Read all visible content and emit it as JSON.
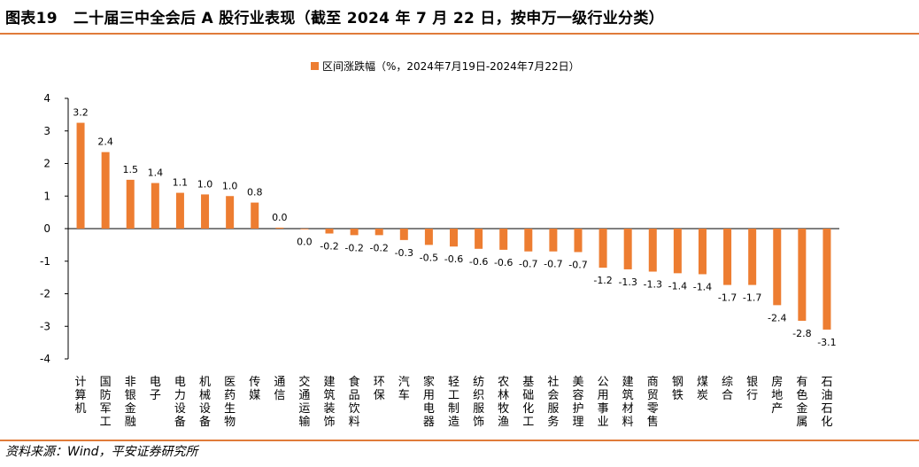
{
  "header": {
    "figure_number": "图表19",
    "title": "二十届三中全会后 A 股行业表现（截至 2024 年 7 月 22 日，按申万一级行业分类）"
  },
  "footer": {
    "source": "资料来源：Wind，平安证券研究所"
  },
  "chart_data": {
    "type": "bar",
    "legend_position": "top-center",
    "grid": false,
    "series": [
      {
        "name": "区间涨跌幅（%，2024年7月19日-2024年7月22日）",
        "color": "#ED7D31",
        "values": [
          3.25,
          2.35,
          1.5,
          1.4,
          1.1,
          1.05,
          1.0,
          0.8,
          0.03,
          -0.02,
          -0.15,
          -0.2,
          -0.2,
          -0.35,
          -0.5,
          -0.55,
          -0.62,
          -0.65,
          -0.7,
          -0.7,
          -0.72,
          -1.2,
          -1.25,
          -1.32,
          -1.37,
          -1.4,
          -1.73,
          -1.73,
          -2.35,
          -2.83,
          -3.1
        ],
        "labels": [
          "3.2",
          "2.4",
          "1.5",
          "1.4",
          "1.1",
          "1.0",
          "1.0",
          "0.8",
          "0.0",
          "0.0",
          "-0.2",
          "-0.2",
          "-0.2",
          "-0.3",
          "-0.5",
          "-0.6",
          "-0.6",
          "-0.6",
          "-0.7",
          "-0.7",
          "-0.7",
          "-1.2",
          "-1.3",
          "-1.3",
          "-1.4",
          "-1.4",
          "-1.7",
          "-1.7",
          "-2.4",
          "-2.8",
          "-3.1"
        ]
      }
    ],
    "categories": [
      "计算机",
      "国防军工",
      "非银金融",
      "电子",
      "电力设备",
      "机械设备",
      "医药生物",
      "传媒",
      "通信",
      "交通运输",
      "建筑装饰",
      "食品饮料",
      "环保",
      "汽车",
      "家用电器",
      "轻工制造",
      "纺织服饰",
      "农林牧渔",
      "基础化工",
      "社会服务",
      "美容护理",
      "公用事业",
      "建筑材料",
      "商贸零售",
      "钢铁",
      "煤炭",
      "综合",
      "银行",
      "房地产",
      "有色金属",
      "石油石化"
    ],
    "ylim": [
      -4,
      4
    ],
    "yticks": [
      "4",
      "3",
      "2",
      "1",
      "0",
      "-1",
      "-2",
      "-3",
      "-4"
    ]
  }
}
